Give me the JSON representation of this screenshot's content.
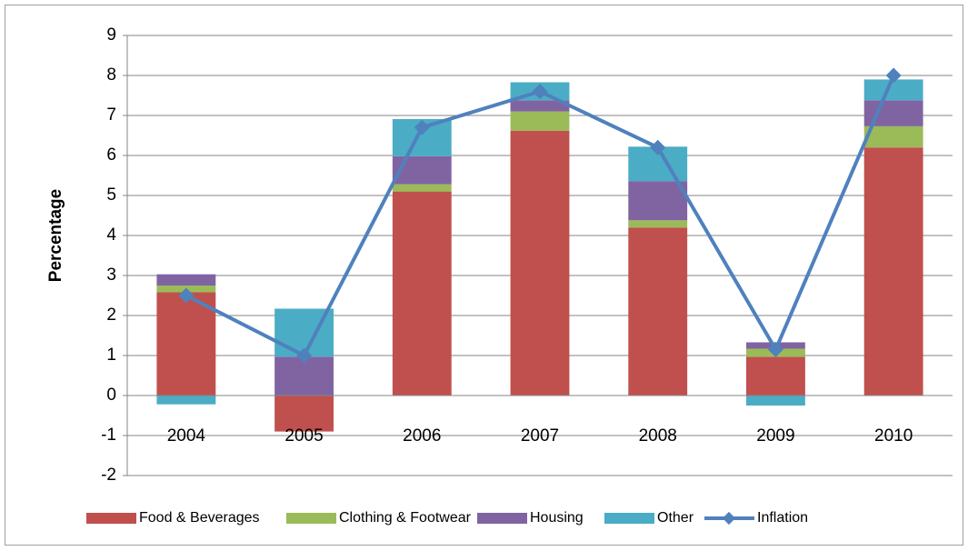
{
  "chart_data": {
    "type": "stacked_bar_line",
    "y_label": "Percentage",
    "categories": [
      "2004",
      "2005",
      "2006",
      "2007",
      "2008",
      "2009",
      "2010"
    ],
    "series": [
      {
        "name": "Food & Beverages",
        "color": "#c0504d",
        "values": [
          2.58,
          -0.9,
          5.1,
          6.62,
          4.2,
          0.97,
          6.2
        ]
      },
      {
        "name": "Clothing & Footwear",
        "color": "#9bbb59",
        "values": [
          0.17,
          0,
          0.18,
          0.48,
          0.18,
          0.2,
          0.53
        ]
      },
      {
        "name": "Housing",
        "color": "#8064a2",
        "values": [
          0.28,
          0.97,
          0.7,
          0.28,
          0.98,
          0.16,
          0.65
        ]
      },
      {
        "name": "Other",
        "color": "#4bacc6",
        "values": [
          -0.22,
          1.2,
          0.93,
          0.45,
          0.86,
          -0.25,
          0.52
        ]
      },
      {
        "name": "Inflation",
        "color": "#4f81bd",
        "type": "line",
        "values": [
          2.5,
          1.0,
          6.7,
          7.6,
          6.2,
          1.15,
          8.0
        ]
      }
    ],
    "ylim": [
      -2,
      9
    ],
    "yticks": [
      -2,
      -1,
      0,
      1,
      2,
      3,
      4,
      5,
      6,
      7,
      8,
      9
    ],
    "grid": true,
    "legend": "bottom"
  }
}
